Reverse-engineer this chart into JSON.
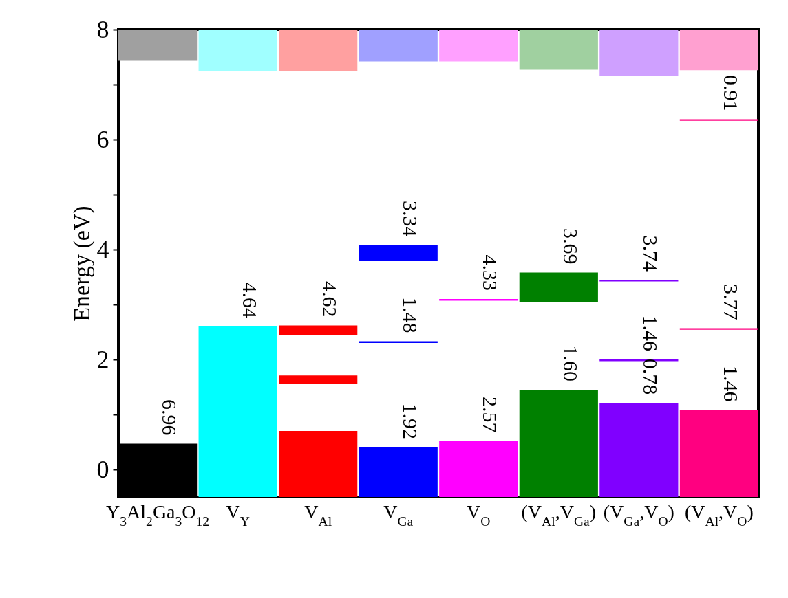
{
  "chart_data": {
    "type": "bar",
    "ylabel": "Energy (eV)",
    "categories": [
      "Y$_{3}$Al$_{2}$Ga$_{3}$O$_{12}$",
      "V$_{Y}$",
      "V$_{Al}$",
      "V$_{Ga}$",
      "V$_{O}$",
      "(V$_{Al}$,V$_{Ga}$)",
      "(V$_{Ga}$,V$_{O}$)",
      "(V$_{Al}$,V$_{O}$)"
    ],
    "series": [
      {
        "base": [
          -0.5,
          -0.5,
          -0.5,
          -0.5,
          -0.5,
          -0.5,
          -0.5,
          -0.5
        ],
        "values": [
          0.97,
          3.1,
          1.2,
          0.9,
          1.02,
          1.95,
          1.71,
          1.58
        ],
        "colors": [
          "#000000",
          "#00ffff",
          "#ff0000",
          "#0000ff",
          "#ff00ff",
          "#008000",
          "#8000ff",
          "#ff0080"
        ]
      },
      {
        "base": [
          null,
          null,
          1.55,
          2.3,
          3.07,
          3.05,
          1.97,
          2.54
        ],
        "values": [
          null,
          null,
          0.16,
          0.03,
          0.03,
          0.53,
          0.03,
          0.03
        ],
        "colors": [
          null,
          null,
          "#ff0000",
          "#0000ff",
          "#ff00ff",
          "#008000",
          "#8000ff",
          "#ff0080"
        ]
      },
      {
        "base": [
          null,
          null,
          2.45,
          3.79,
          null,
          null,
          3.42,
          6.34
        ],
        "values": [
          null,
          null,
          0.17,
          0.29,
          null,
          null,
          0.03,
          0.03
        ],
        "colors": [
          null,
          null,
          "#ff0000",
          "#0000ff",
          null,
          null,
          "#8000ff",
          "#ff0080"
        ]
      },
      {
        "base": [
          7.43,
          7.24,
          7.24,
          7.42,
          7.42,
          7.27,
          7.15,
          7.26
        ],
        "values": [
          0.57,
          0.76,
          0.76,
          0.58,
          0.58,
          0.73,
          0.85,
          0.74
        ],
        "colors": [
          "#a0a0a0",
          "#a0ffff",
          "#ffa0a0",
          "#a0a0ff",
          "#ffa0ff",
          "#a0d0a0",
          "#cfa0ff",
          "#ffa0d0"
        ]
      }
    ],
    "ylim": [
      -0.5,
      8
    ],
    "yticks": [
      0,
      {
        "value": 1,
        "label": null
      },
      2,
      {
        "value": 3,
        "label": null
      },
      4,
      {
        "value": 5,
        "label": null
      },
      6,
      {
        "value": 7,
        "label": null
      },
      8
    ],
    "annotations": [
      {
        "text": "6.96",
        "x": "Y$_{3}$Al$_{2}$Ga$_{3}$O$_{12}$",
        "y": 0.47
      },
      {
        "text": "4.64",
        "x": "V$_{Y}$",
        "y": 2.6
      },
      {
        "text": "4.62",
        "x": "V$_{Al}$",
        "y": 2.62
      },
      {
        "text": "3.34",
        "x": "V$_{Ga}$",
        "y": 4.08
      },
      {
        "text": "1.48",
        "x": "V$_{Ga}$",
        "y": 2.33
      },
      {
        "text": "1.92",
        "x": "V$_{Ga}$",
        "y": 0.4
      },
      {
        "text": "4.33",
        "x": "V$_{O}$",
        "y": 3.1
      },
      {
        "text": "2.57",
        "x": "V$_{O}$",
        "y": 0.52
      },
      {
        "text": "3.69",
        "x": "(V$_{Al}$,V$_{Ga}$)",
        "y": 3.58
      },
      {
        "text": "1.60",
        "x": "(V$_{Al}$,V$_{Ga}$)",
        "y": 1.45
      },
      {
        "text": "3.74",
        "x": "(V$_{Ga}$,V$_{O}$)",
        "y": 3.45
      },
      {
        "text": "1.46",
        "x": "(V$_{Ga}$,V$_{O}$)",
        "y": 2
      },
      {
        "text": "0.78",
        "x": "(V$_{Ga}$,V$_{O}$)",
        "y": 1.21
      },
      {
        "text": "0.91",
        "x": "(V$_{Al}$,V$_{O}$)",
        "y": 6.37
      },
      {
        "text": "3.77",
        "x": "(V$_{Al}$,V$_{O}$)",
        "y": 2.57
      },
      {
        "text": "1.46",
        "x": "(V$_{Al}$,V$_{O}$)",
        "y": 1.08
      }
    ]
  }
}
